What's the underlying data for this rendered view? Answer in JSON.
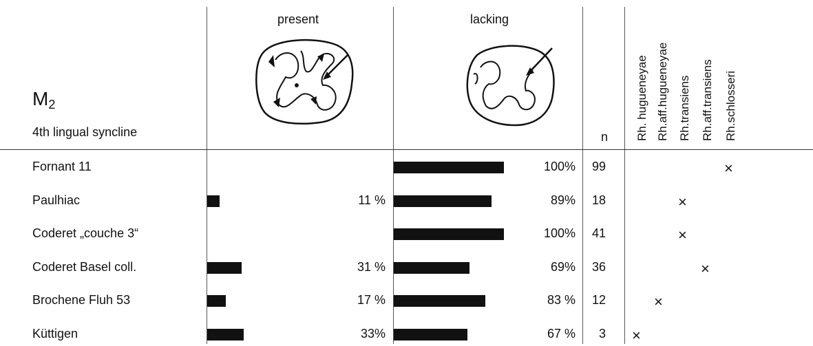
{
  "chart_data": {
    "type": "bar",
    "title": "M2",
    "title_main": "M",
    "title_sub": "2",
    "subtitle": "4th lingual syncline",
    "column_headers": {
      "present": "present",
      "lacking": "lacking",
      "n": "n"
    },
    "species": [
      "Rh. hugueneyae",
      "Rh.aff.hugueneyae",
      "Rh.transiens",
      "Rh.aff.transiens",
      "Rh.schlosseri"
    ],
    "categories": [
      "Fornant 11",
      "Paulhiac",
      "Coderet „couche 3“",
      "Coderet  Basel coll.",
      "Brochene Fluh 53",
      "Küttigen"
    ],
    "series": [
      {
        "name": "present",
        "values": [
          0,
          11,
          0,
          31,
          17,
          33
        ]
      },
      {
        "name": "lacking",
        "values": [
          100,
          89,
          100,
          69,
          83,
          67
        ]
      }
    ],
    "present_labels": [
      "",
      "11 %",
      "",
      "31 %",
      "17 %",
      "33%"
    ],
    "lacking_labels": [
      "100%",
      "89%",
      "100%",
      "69%",
      "83 %",
      "67 %"
    ],
    "n": [
      "99",
      "18",
      "41",
      "36",
      "12",
      "3"
    ],
    "species_marks": [
      4,
      2,
      2,
      3,
      1,
      0
    ],
    "mark_symbol": "×",
    "xlim": [
      0,
      100
    ]
  }
}
